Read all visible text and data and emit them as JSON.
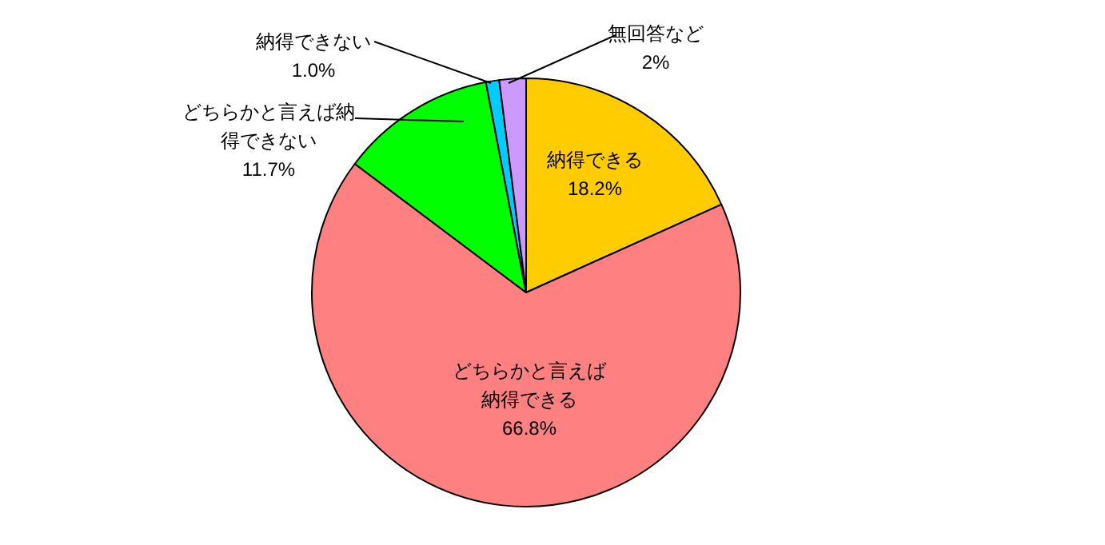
{
  "chart_data": {
    "type": "pie",
    "categories": [
      "納得できる",
      "どちらかと言えば納得できる",
      "どちらかと言えば納得できない",
      "納得できない",
      "無回答など"
    ],
    "values": [
      18.2,
      66.8,
      11.7,
      1.0,
      2
    ],
    "colors": [
      "#ffcc00",
      "#ff8080",
      "#00ff00",
      "#00ccff",
      "#cc99ff"
    ],
    "value_labels": [
      "18.2%",
      "66.8%",
      "11.7%",
      "1.0%",
      "2%"
    ],
    "legend": false
  }
}
